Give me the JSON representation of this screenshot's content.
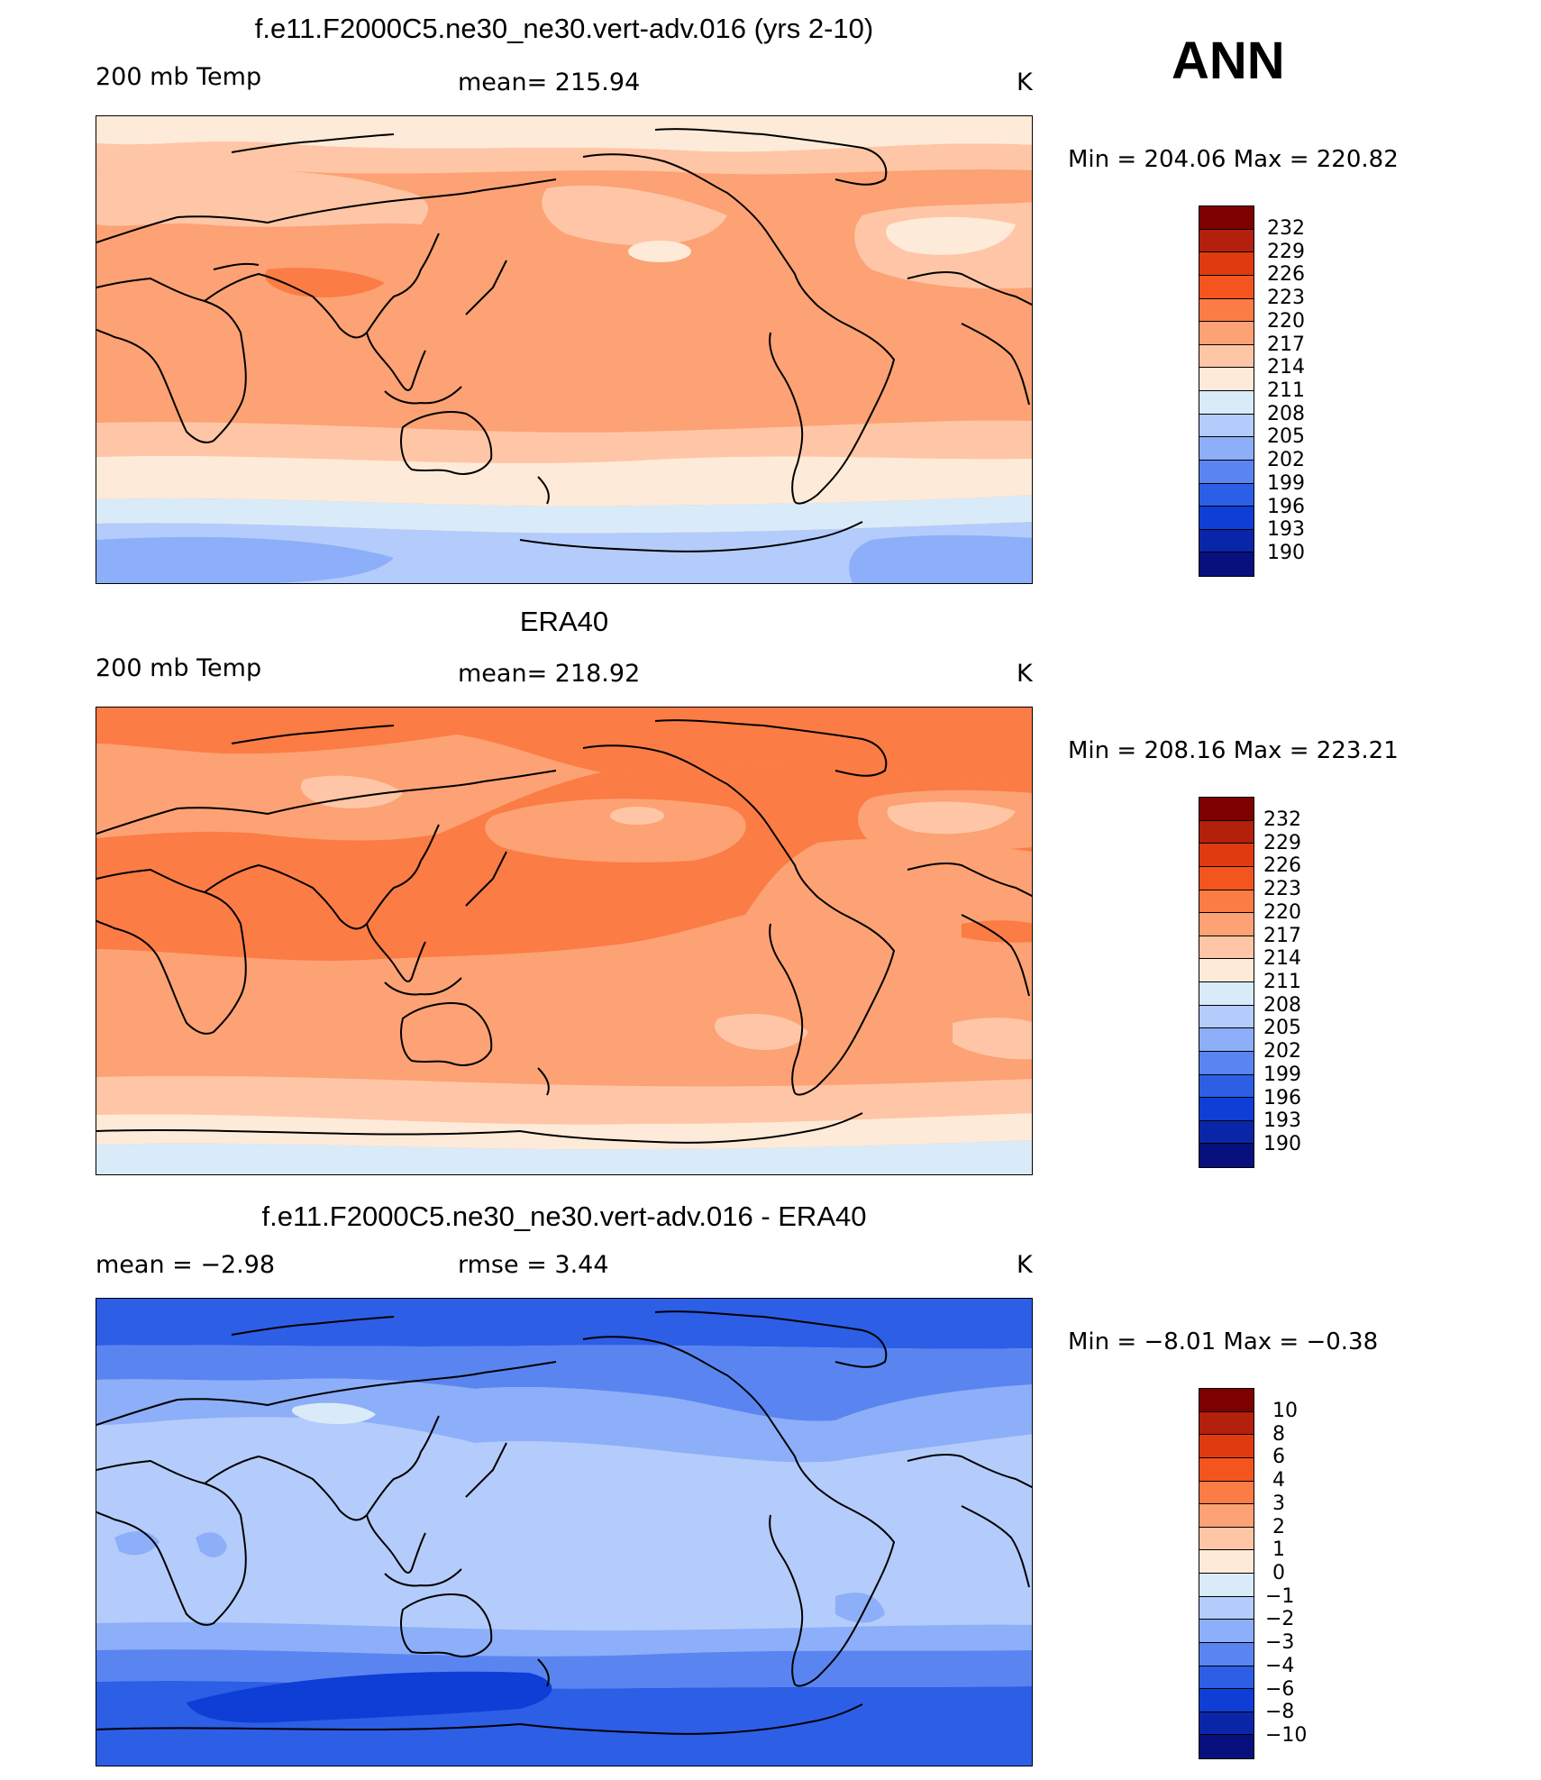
{
  "ann_label": "ANN",
  "panels": [
    {
      "id": "model",
      "title": "f.e11.F2000C5.ne30_ne30.vert-adv.016 (yrs 2-10)",
      "left_label": "200 mb Temp",
      "center_label": "mean=  215.94",
      "units": "K",
      "minmax": "Min  =  204.06  Max  =  220.82",
      "colorbar_labels": [
        "232",
        "229",
        "226",
        "223",
        "220",
        "217",
        "214",
        "211",
        "208",
        "205",
        "202",
        "199",
        "196",
        "193",
        "190"
      ]
    },
    {
      "id": "obs",
      "title": "ERA40",
      "left_label": "200 mb Temp",
      "center_label": "mean=  218.92",
      "units": "K",
      "minmax": "Min  =  208.16  Max  =  223.21",
      "colorbar_labels": [
        "232",
        "229",
        "226",
        "223",
        "220",
        "217",
        "214",
        "211",
        "208",
        "205",
        "202",
        "199",
        "196",
        "193",
        "190"
      ]
    },
    {
      "id": "diff",
      "title": "f.e11.F2000C5.ne30_ne30.vert-adv.016 - ERA40",
      "left_label": "mean  =     −2.98",
      "center_label": "rmse  =     3.44",
      "units": "K",
      "minmax": "Min  =    −8.01  Max  =    −0.38",
      "colorbar_labels": [
        "10",
        "8",
        "6",
        "4",
        "3",
        "2",
        "1",
        "0",
        "−1",
        "−2",
        "−3",
        "−4",
        "−6",
        "−8",
        "−10"
      ]
    }
  ],
  "colors": {
    "scale": [
      "#7f0000",
      "#b3200c",
      "#df3b0f",
      "#f4551f",
      "#fb7c45",
      "#fca274",
      "#fec6a6",
      "#feead8",
      "#d9ebf9",
      "#b4ccfb",
      "#8daef8",
      "#5a85f0",
      "#2d5ee6",
      "#0e3ed6",
      "#0a26a8",
      "#08107e"
    ],
    "coast": "#000000"
  }
}
